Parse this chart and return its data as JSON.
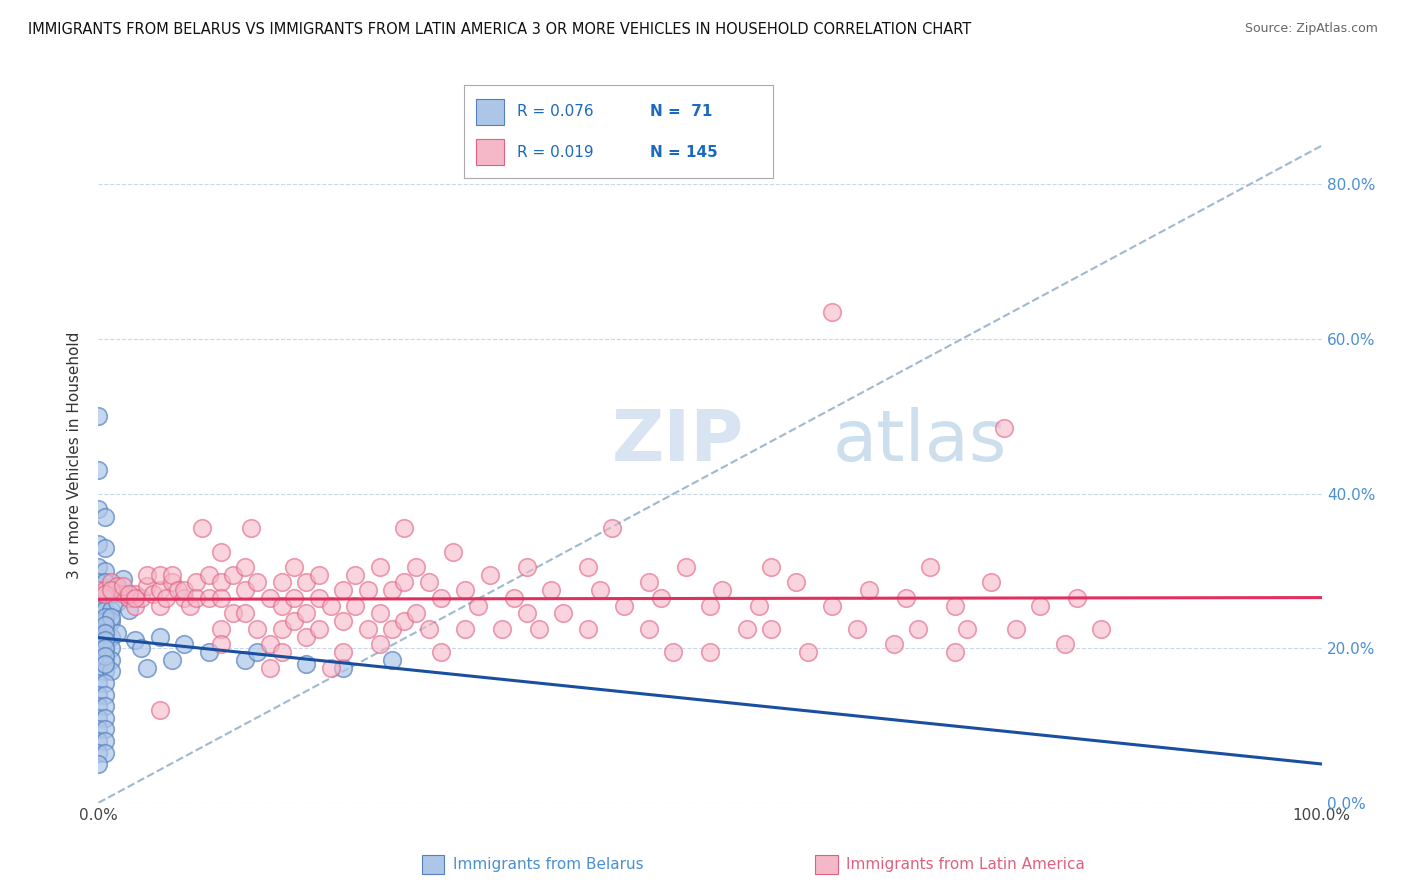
{
  "title": "IMMIGRANTS FROM BELARUS VS IMMIGRANTS FROM LATIN AMERICA 3 OR MORE VEHICLES IN HOUSEHOLD CORRELATION CHART",
  "source": "Source: ZipAtlas.com",
  "ylabel": "3 or more Vehicles in Household",
  "xlim": [
    0.0,
    1.0
  ],
  "ylim": [
    0.0,
    0.9
  ],
  "x_tick_positions": [
    0.0,
    1.0
  ],
  "x_tick_labels": [
    "0.0%",
    "100.0%"
  ],
  "y_ticks": [
    0.0,
    0.2,
    0.4,
    0.6,
    0.8
  ],
  "y_tick_labels": [
    "0.0%",
    "20.0%",
    "40.0%",
    "60.0%",
    "80.0%"
  ],
  "legend_labels": [
    "Immigrants from Belarus",
    "Immigrants from Latin America"
  ],
  "legend_R": [
    0.076,
    0.019
  ],
  "legend_N": [
    71,
    145
  ],
  "blue_color": "#adc6e8",
  "pink_color": "#f5b8c8",
  "blue_edge_color": "#5580c0",
  "pink_edge_color": "#e06080",
  "blue_line_color": "#1a4fa0",
  "pink_line_color": "#e03060",
  "grid_color": "#c8d8e8",
  "dash_color": "#a0b8d0",
  "watermark": "ZIPAtlas",
  "watermark_color": "#c8d8e8",
  "blue_scatter": [
    [
      0.0,
      0.5
    ],
    [
      0.0,
      0.43
    ],
    [
      0.0,
      0.38
    ],
    [
      0.005,
      0.37
    ],
    [
      0.0,
      0.335
    ],
    [
      0.005,
      0.33
    ],
    [
      0.0,
      0.305
    ],
    [
      0.005,
      0.3
    ],
    [
      0.0,
      0.285
    ],
    [
      0.005,
      0.285
    ],
    [
      0.0,
      0.265
    ],
    [
      0.005,
      0.265
    ],
    [
      0.01,
      0.27
    ],
    [
      0.0,
      0.25
    ],
    [
      0.005,
      0.25
    ],
    [
      0.01,
      0.25
    ],
    [
      0.0,
      0.235
    ],
    [
      0.005,
      0.235
    ],
    [
      0.01,
      0.235
    ],
    [
      0.0,
      0.215
    ],
    [
      0.005,
      0.215
    ],
    [
      0.01,
      0.215
    ],
    [
      0.0,
      0.2
    ],
    [
      0.005,
      0.2
    ],
    [
      0.01,
      0.2
    ],
    [
      0.0,
      0.185
    ],
    [
      0.005,
      0.185
    ],
    [
      0.01,
      0.185
    ],
    [
      0.0,
      0.17
    ],
    [
      0.005,
      0.17
    ],
    [
      0.01,
      0.17
    ],
    [
      0.0,
      0.155
    ],
    [
      0.005,
      0.155
    ],
    [
      0.0,
      0.14
    ],
    [
      0.005,
      0.14
    ],
    [
      0.0,
      0.125
    ],
    [
      0.005,
      0.125
    ],
    [
      0.0,
      0.11
    ],
    [
      0.005,
      0.11
    ],
    [
      0.0,
      0.095
    ],
    [
      0.005,
      0.095
    ],
    [
      0.0,
      0.08
    ],
    [
      0.005,
      0.08
    ],
    [
      0.0,
      0.065
    ],
    [
      0.005,
      0.065
    ],
    [
      0.0,
      0.05
    ],
    [
      0.015,
      0.22
    ],
    [
      0.015,
      0.26
    ],
    [
      0.02,
      0.29
    ],
    [
      0.025,
      0.25
    ],
    [
      0.03,
      0.21
    ],
    [
      0.035,
      0.2
    ],
    [
      0.04,
      0.175
    ],
    [
      0.05,
      0.215
    ],
    [
      0.06,
      0.185
    ],
    [
      0.07,
      0.205
    ],
    [
      0.09,
      0.195
    ],
    [
      0.12,
      0.185
    ],
    [
      0.13,
      0.195
    ],
    [
      0.17,
      0.18
    ],
    [
      0.2,
      0.175
    ],
    [
      0.24,
      0.185
    ],
    [
      0.005,
      0.24
    ],
    [
      0.01,
      0.24
    ],
    [
      0.005,
      0.23
    ],
    [
      0.005,
      0.22
    ],
    [
      0.005,
      0.21
    ],
    [
      0.005,
      0.2
    ],
    [
      0.005,
      0.19
    ],
    [
      0.005,
      0.18
    ]
  ],
  "pink_scatter": [
    [
      0.0,
      0.275
    ],
    [
      0.005,
      0.275
    ],
    [
      0.01,
      0.285
    ],
    [
      0.015,
      0.28
    ],
    [
      0.02,
      0.27
    ],
    [
      0.025,
      0.265
    ],
    [
      0.03,
      0.255
    ],
    [
      0.03,
      0.27
    ],
    [
      0.035,
      0.265
    ],
    [
      0.04,
      0.28
    ],
    [
      0.04,
      0.295
    ],
    [
      0.045,
      0.27
    ],
    [
      0.05,
      0.255
    ],
    [
      0.05,
      0.275
    ],
    [
      0.05,
      0.295
    ],
    [
      0.055,
      0.265
    ],
    [
      0.06,
      0.285
    ],
    [
      0.06,
      0.295
    ],
    [
      0.065,
      0.275
    ],
    [
      0.07,
      0.265
    ],
    [
      0.07,
      0.275
    ],
    [
      0.075,
      0.255
    ],
    [
      0.08,
      0.285
    ],
    [
      0.08,
      0.265
    ],
    [
      0.085,
      0.355
    ],
    [
      0.09,
      0.295
    ],
    [
      0.09,
      0.265
    ],
    [
      0.1,
      0.325
    ],
    [
      0.1,
      0.285
    ],
    [
      0.1,
      0.265
    ],
    [
      0.1,
      0.225
    ],
    [
      0.1,
      0.205
    ],
    [
      0.11,
      0.295
    ],
    [
      0.11,
      0.245
    ],
    [
      0.12,
      0.305
    ],
    [
      0.12,
      0.275
    ],
    [
      0.12,
      0.245
    ],
    [
      0.125,
      0.355
    ],
    [
      0.13,
      0.285
    ],
    [
      0.13,
      0.225
    ],
    [
      0.14,
      0.265
    ],
    [
      0.14,
      0.205
    ],
    [
      0.14,
      0.175
    ],
    [
      0.15,
      0.285
    ],
    [
      0.15,
      0.255
    ],
    [
      0.15,
      0.225
    ],
    [
      0.15,
      0.195
    ],
    [
      0.16,
      0.305
    ],
    [
      0.16,
      0.265
    ],
    [
      0.16,
      0.235
    ],
    [
      0.17,
      0.285
    ],
    [
      0.17,
      0.245
    ],
    [
      0.17,
      0.215
    ],
    [
      0.18,
      0.295
    ],
    [
      0.18,
      0.265
    ],
    [
      0.18,
      0.225
    ],
    [
      0.19,
      0.255
    ],
    [
      0.19,
      0.175
    ],
    [
      0.2,
      0.275
    ],
    [
      0.2,
      0.235
    ],
    [
      0.2,
      0.195
    ],
    [
      0.21,
      0.295
    ],
    [
      0.21,
      0.255
    ],
    [
      0.22,
      0.275
    ],
    [
      0.22,
      0.225
    ],
    [
      0.23,
      0.305
    ],
    [
      0.23,
      0.245
    ],
    [
      0.23,
      0.205
    ],
    [
      0.24,
      0.275
    ],
    [
      0.24,
      0.225
    ],
    [
      0.25,
      0.355
    ],
    [
      0.25,
      0.285
    ],
    [
      0.25,
      0.235
    ],
    [
      0.26,
      0.305
    ],
    [
      0.26,
      0.245
    ],
    [
      0.27,
      0.285
    ],
    [
      0.27,
      0.225
    ],
    [
      0.28,
      0.265
    ],
    [
      0.28,
      0.195
    ],
    [
      0.29,
      0.325
    ],
    [
      0.3,
      0.275
    ],
    [
      0.3,
      0.225
    ],
    [
      0.31,
      0.255
    ],
    [
      0.32,
      0.295
    ],
    [
      0.33,
      0.225
    ],
    [
      0.34,
      0.265
    ],
    [
      0.35,
      0.305
    ],
    [
      0.35,
      0.245
    ],
    [
      0.36,
      0.225
    ],
    [
      0.37,
      0.275
    ],
    [
      0.38,
      0.245
    ],
    [
      0.4,
      0.305
    ],
    [
      0.4,
      0.225
    ],
    [
      0.41,
      0.275
    ],
    [
      0.42,
      0.355
    ],
    [
      0.43,
      0.255
    ],
    [
      0.45,
      0.285
    ],
    [
      0.45,
      0.225
    ],
    [
      0.46,
      0.265
    ],
    [
      0.47,
      0.195
    ],
    [
      0.48,
      0.305
    ],
    [
      0.5,
      0.255
    ],
    [
      0.5,
      0.195
    ],
    [
      0.51,
      0.275
    ],
    [
      0.53,
      0.225
    ],
    [
      0.54,
      0.255
    ],
    [
      0.55,
      0.305
    ],
    [
      0.55,
      0.225
    ],
    [
      0.57,
      0.285
    ],
    [
      0.58,
      0.195
    ],
    [
      0.6,
      0.255
    ],
    [
      0.6,
      0.635
    ],
    [
      0.62,
      0.225
    ],
    [
      0.63,
      0.275
    ],
    [
      0.65,
      0.205
    ],
    [
      0.66,
      0.265
    ],
    [
      0.67,
      0.225
    ],
    [
      0.68,
      0.305
    ],
    [
      0.7,
      0.255
    ],
    [
      0.7,
      0.195
    ],
    [
      0.71,
      0.225
    ],
    [
      0.73,
      0.285
    ],
    [
      0.74,
      0.485
    ],
    [
      0.75,
      0.225
    ],
    [
      0.77,
      0.255
    ],
    [
      0.79,
      0.205
    ],
    [
      0.8,
      0.265
    ],
    [
      0.82,
      0.225
    ],
    [
      0.005,
      0.27
    ],
    [
      0.01,
      0.275
    ],
    [
      0.02,
      0.28
    ],
    [
      0.025,
      0.27
    ],
    [
      0.03,
      0.265
    ],
    [
      0.05,
      0.12
    ]
  ]
}
